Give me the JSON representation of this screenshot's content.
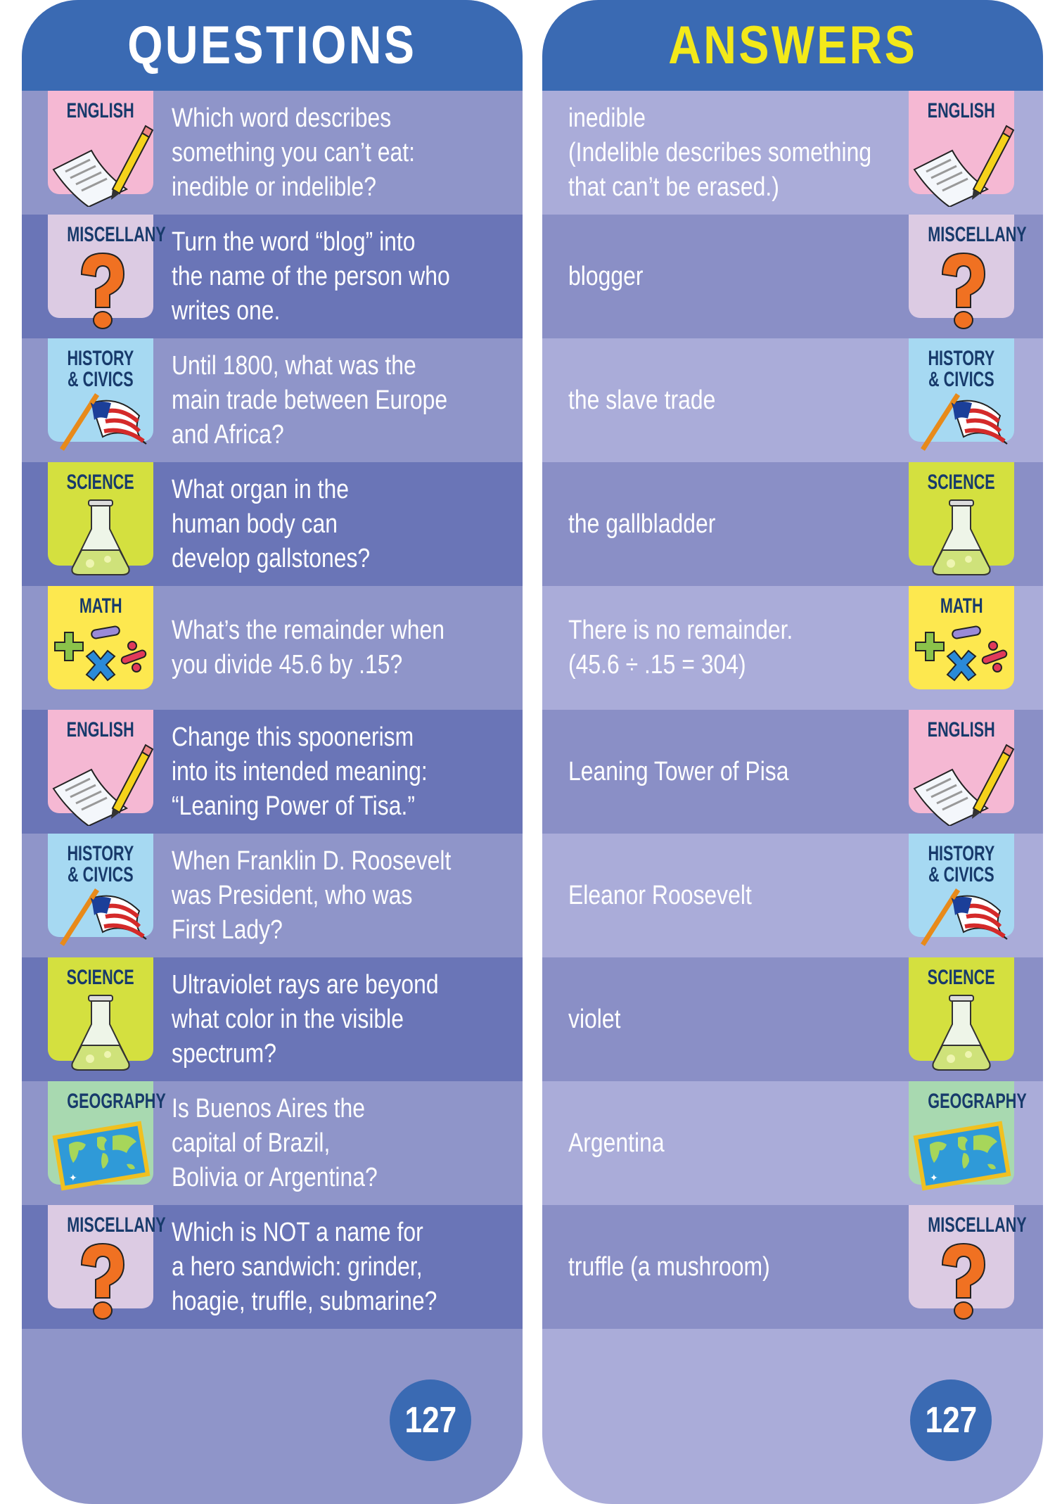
{
  "questions": {
    "title": "QUESTIONS",
    "page_number": "127",
    "rows": [
      {
        "category": "ENGLISH",
        "icon": "paper-pencil-icon",
        "text": "Which word describes\nsomething you can’t eat:\ninedible or indelible?"
      },
      {
        "category": "MISCELLANY",
        "icon": "question-mark-icon",
        "text": "Turn the word “blog” into\nthe name of the person who\nwrites one."
      },
      {
        "category": "HISTORY\n& CIVICS",
        "icon": "american-flag-icon",
        "text": "Until 1800, what was the\nmain trade between Europe\nand Africa?"
      },
      {
        "category": "SCIENCE",
        "icon": "flask-icon",
        "text": "What organ in the\nhuman body can\ndevelop gallstones?"
      },
      {
        "category": "MATH",
        "icon": "math-symbols-icon",
        "text": "What’s the remainder when\nyou divide 45.6 by .15?"
      },
      {
        "category": "ENGLISH",
        "icon": "paper-pencil-icon",
        "text": "Change this spoonerism\ninto its intended meaning:\n“Leaning Power of Tisa.”"
      },
      {
        "category": "HISTORY\n& CIVICS",
        "icon": "american-flag-icon",
        "text": "When Franklin D. Roosevelt\nwas President, who was\nFirst Lady?"
      },
      {
        "category": "SCIENCE",
        "icon": "flask-icon",
        "text": "Ultraviolet rays are beyond\nwhat color in the visible\nspectrum?"
      },
      {
        "category": "GEOGRAPHY",
        "icon": "world-map-icon",
        "text": "Is Buenos Aires the\ncapital of Brazil,\nBolivia or Argentina?"
      },
      {
        "category": "MISCELLANY",
        "icon": "question-mark-icon",
        "text": "Which is NOT a name for\na hero sandwich: grinder,\nhoagie, truffle, submarine?"
      }
    ]
  },
  "answers": {
    "title": "ANSWERS",
    "page_number": "127",
    "rows": [
      {
        "category": "ENGLISH",
        "icon": "paper-pencil-icon",
        "text": "inedible\n(Indelible describes something\nthat can’t be erased.)"
      },
      {
        "category": "MISCELLANY",
        "icon": "question-mark-icon",
        "text": "blogger"
      },
      {
        "category": "HISTORY\n& CIVICS",
        "icon": "american-flag-icon",
        "text": "the slave trade"
      },
      {
        "category": "SCIENCE",
        "icon": "flask-icon",
        "text": "the gallbladder"
      },
      {
        "category": "MATH",
        "icon": "math-symbols-icon",
        "text": "There is no remainder.\n(45.6 ÷ .15 = 304)"
      },
      {
        "category": "ENGLISH",
        "icon": "paper-pencil-icon",
        "text": "Leaning Tower of Pisa"
      },
      {
        "category": "HISTORY\n& CIVICS",
        "icon": "american-flag-icon",
        "text": "Eleanor Roosevelt"
      },
      {
        "category": "SCIENCE",
        "icon": "flask-icon",
        "text": "violet"
      },
      {
        "category": "GEOGRAPHY",
        "icon": "world-map-icon",
        "text": "Argentina"
      },
      {
        "category": "MISCELLANY",
        "icon": "question-mark-icon",
        "text": "truffle (a mushroom)"
      }
    ]
  },
  "colors": {
    "header": "#3a6ab3",
    "questions_title": "#ffffff",
    "answers_title": "#f3e91a",
    "question_row_light": "#8f95c9",
    "question_row_dark": "#6a75b7",
    "answer_row_light": "#aaacd9",
    "answer_row_dark": "#8a8fc6",
    "category_label": "#173a6b",
    "badges": {
      "ENGLISH": "#f5b8d3",
      "MISCELLANY": "#dccbe3",
      "HISTORY\n& CIVICS": "#a6d9f2",
      "SCIENCE": "#d4e03f",
      "MATH": "#fde84f",
      "GEOGRAPHY": "#a8d9b0"
    }
  }
}
